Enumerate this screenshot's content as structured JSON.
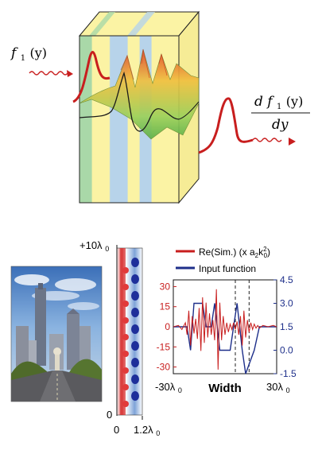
{
  "diagram": {
    "input_label": {
      "f": "f",
      "sub": "1",
      "arg": "(y)"
    },
    "output_label": {
      "numerator": {
        "d": "d",
        "f": "f",
        "sub": "1",
        "arg": "(y)"
      },
      "denominator": "dy"
    },
    "colors": {
      "wave_red": "#c81e1e",
      "block_yellow": "#fbf3a4",
      "band_green": "#a9d8a8",
      "band_blue": "#b7d3ea",
      "surface_top": "#f0c040",
      "surface_low": "#7bc75a"
    }
  },
  "strip": {
    "top_label": {
      "main": "+10λ",
      "sub": "0"
    },
    "bottom_label": "0",
    "x_left": "0",
    "x_right": {
      "main": "1.2λ",
      "sub": "0"
    }
  },
  "chart_data": {
    "type": "line",
    "title": "",
    "xlabel": "Width",
    "x_tick_labels": [
      {
        "main": "-30λ",
        "sub": "0"
      },
      {
        "main": "30λ",
        "sub": "0"
      }
    ],
    "xlim": [
      -30,
      30
    ],
    "ylim_left": [
      -35,
      35
    ],
    "ylim_right": [
      -1.5,
      4.5
    ],
    "left_ticks": [
      "30",
      "15",
      "0",
      "-15",
      "-30"
    ],
    "right_ticks": [
      "4.5",
      "3.0",
      "1.5",
      "0.0",
      "-1.5"
    ],
    "legend": {
      "placement": "top",
      "entries": [
        {
          "name_parts": [
            "Re(Sim.) (x a",
            "2",
            "k",
            "2",
            "0",
            ")"
          ],
          "color": "#c81e1e"
        },
        {
          "name": "Input function",
          "color": "#1e2f8a"
        }
      ]
    },
    "series": [
      {
        "name": "Input function",
        "axis": "right",
        "color": "#1e2f8a",
        "x": [
          -30,
          -22,
          -20,
          -18,
          -13,
          -11,
          -8,
          -6,
          -3,
          3,
          5,
          7,
          10,
          12,
          17,
          20,
          22,
          30
        ],
        "values": [
          1.5,
          1.5,
          0.0,
          3.0,
          3.0,
          1.5,
          1.5,
          3.0,
          0.0,
          0.0,
          1.5,
          3.0,
          0.0,
          -1.5,
          0.0,
          1.5,
          1.5,
          1.5
        ]
      },
      {
        "name": "Re(Sim.)",
        "axis": "left",
        "color": "#c81e1e",
        "x": [
          -30,
          -27,
          -25,
          -23,
          -22,
          -21,
          -20,
          -19,
          -18,
          -17,
          -16,
          -15,
          -14,
          -13,
          -12,
          -11,
          -10,
          -9,
          -8,
          -7,
          -6,
          -5,
          -4,
          -3,
          -2,
          -1,
          0,
          1,
          2,
          3,
          4,
          5,
          6,
          7,
          8,
          9,
          10,
          11,
          12,
          13,
          14,
          15,
          16,
          17,
          18,
          19,
          20,
          22,
          25,
          28,
          30
        ],
        "values": [
          0,
          1,
          -2,
          3,
          -6,
          12,
          -14,
          8,
          -5,
          6,
          -9,
          14,
          -18,
          22,
          -12,
          18,
          -8,
          10,
          -6,
          5,
          -10,
          28,
          -32,
          18,
          -10,
          8,
          -6,
          3,
          -4,
          2,
          -2,
          3,
          -2,
          4,
          -6,
          8,
          -14,
          12,
          -8,
          5,
          -4,
          3,
          -2,
          2,
          -1,
          1,
          -1,
          1,
          0,
          1,
          0
        ]
      }
    ],
    "dashed_vertical_lines_x": [
      6,
      14
    ]
  }
}
